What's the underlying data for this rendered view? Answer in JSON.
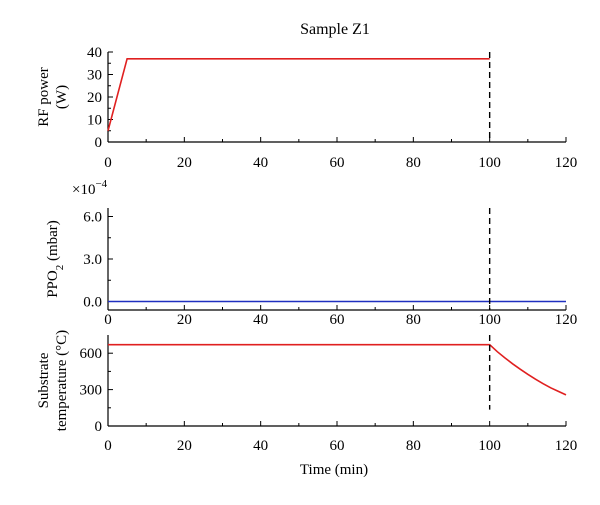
{
  "chart_data": {
    "title": "Sample Z1",
    "panels": [
      {
        "type": "line",
        "ylabel": [
          "RF power",
          "(W)"
        ],
        "xlim": [
          0,
          120
        ],
        "ylim": [
          0,
          40
        ],
        "xticks": [
          0,
          20,
          40,
          60,
          80,
          100,
          120
        ],
        "yticks": [
          0,
          10,
          20,
          30,
          40
        ],
        "series": [
          {
            "color": "#e02020",
            "x": [
              0,
              5,
              100
            ],
            "y": [
              5,
              37,
              37
            ]
          }
        ],
        "vline": {
          "x": 100,
          "style": "dashed"
        }
      },
      {
        "type": "line",
        "ylabel": [
          "PPO2 (mbar)"
        ],
        "multiplier_label": "×10",
        "multiplier_exponent": "−4",
        "xlim": [
          0,
          120
        ],
        "ylim": [
          -0.6,
          6.6
        ],
        "xticks": [
          0,
          20,
          40,
          60,
          80,
          100,
          120
        ],
        "yticks": [
          0.0,
          3.0,
          6.0
        ],
        "ytick_labels": [
          "0.0",
          "3.0",
          "6.0"
        ],
        "series": [
          {
            "color": "#2030c0",
            "x": [
              0,
              120
            ],
            "y": [
              0,
              0
            ]
          }
        ],
        "vline": {
          "x": 100,
          "style": "dashed"
        }
      },
      {
        "type": "line",
        "ylabel": [
          "Substrate",
          "temperature (°C)"
        ],
        "xlabel": "Time (min)",
        "xlim": [
          0,
          120
        ],
        "ylim": [
          0,
          750
        ],
        "xticks": [
          0,
          20,
          40,
          60,
          80,
          100,
          120
        ],
        "yticks": [
          0,
          300,
          600
        ],
        "series": [
          {
            "color": "#e02020",
            "x": [
              0,
              100,
              102,
              104,
              106,
              108,
              110,
              112,
              114,
              116,
              118,
              120
            ],
            "y": [
              670,
              670,
              612,
              561,
              513,
              468,
              426,
              386,
              349,
              315,
              285,
              256
            ]
          }
        ],
        "vline": {
          "x": 100,
          "style": "dashed",
          "y_from": 135
        }
      }
    ]
  },
  "colors": {
    "axis": "#000000",
    "red": "#e02020",
    "blue": "#2030c0"
  }
}
